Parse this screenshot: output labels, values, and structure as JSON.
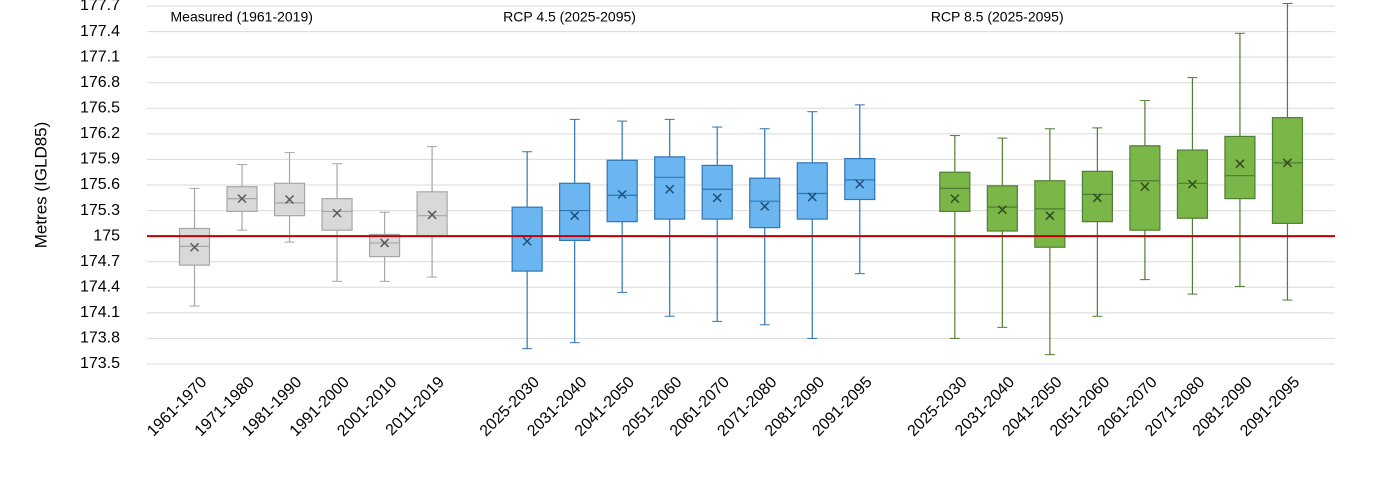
{
  "chart_data": {
    "type": "box",
    "y_label": "Metres (IGLD85)",
    "ylim": [
      173.5,
      177.7
    ],
    "yticks": [
      173.5,
      173.8,
      174.1,
      174.4,
      174.7,
      175,
      175.3,
      175.6,
      175.9,
      176.2,
      176.5,
      176.8,
      177.1,
      177.4,
      177.7
    ],
    "grid": true,
    "reference_line": {
      "value": 175,
      "color": "#c00000"
    },
    "categories": [
      "1961-1970",
      "1971-1980",
      "1981-1990",
      "1991-2000",
      "2001-2010",
      "2011-2019",
      null,
      "2025-2030",
      "2031-2040",
      "2041-2050",
      "2051-2060",
      "2061-2070",
      "2071-2080",
      "2081-2090",
      "2091-2095",
      null,
      "2025-2030",
      "2031-2040",
      "2041-2050",
      "2051-2060",
      "2061-2070",
      "2071-2080",
      "2081-2090",
      "2091-2095"
    ],
    "series": [
      {
        "name": "Measured (1961-2019)",
        "color": "#d9d9d9",
        "edge_color": "#a6a6a6",
        "mean_color": "#595959",
        "min": [
          174.18,
          175.07,
          174.93,
          174.47,
          174.47,
          174.52,
          null,
          null,
          null,
          null,
          null,
          null,
          null,
          null,
          null,
          null,
          null,
          null,
          null,
          null,
          null,
          null,
          null,
          null
        ],
        "q1": [
          174.66,
          175.29,
          175.24,
          175.07,
          174.76,
          175.0,
          null,
          null,
          null,
          null,
          null,
          null,
          null,
          null,
          null,
          null,
          null,
          null,
          null,
          null,
          null,
          null,
          null,
          null
        ],
        "median": [
          174.88,
          175.44,
          175.39,
          175.29,
          174.92,
          175.24,
          null,
          null,
          null,
          null,
          null,
          null,
          null,
          null,
          null,
          null,
          null,
          null,
          null,
          null,
          null,
          null,
          null,
          null
        ],
        "q3": [
          175.09,
          175.58,
          175.62,
          175.44,
          175.02,
          175.52,
          null,
          null,
          null,
          null,
          null,
          null,
          null,
          null,
          null,
          null,
          null,
          null,
          null,
          null,
          null,
          null,
          null,
          null
        ],
        "max": [
          175.56,
          175.84,
          175.98,
          175.85,
          175.28,
          176.05,
          null,
          null,
          null,
          null,
          null,
          null,
          null,
          null,
          null,
          null,
          null,
          null,
          null,
          null,
          null,
          null,
          null,
          null
        ],
        "mean": [
          174.87,
          175.44,
          175.43,
          175.27,
          174.92,
          175.25,
          null,
          null,
          null,
          null,
          null,
          null,
          null,
          null,
          null,
          null,
          null,
          null,
          null,
          null,
          null,
          null,
          null,
          null
        ]
      },
      {
        "name": "RCP 4.5 (2025-2095)",
        "color": "#6bb6f0",
        "edge_color": "#2e75b6",
        "mean_color": "#1f4e79",
        "min": [
          null,
          null,
          null,
          null,
          null,
          null,
          null,
          173.68,
          173.75,
          174.34,
          174.06,
          174.0,
          173.96,
          173.8,
          174.56,
          null,
          null,
          null,
          null,
          null,
          null,
          null,
          null,
          null
        ],
        "q1": [
          null,
          null,
          null,
          null,
          null,
          null,
          null,
          174.59,
          174.95,
          175.17,
          175.2,
          175.2,
          175.1,
          175.2,
          175.43,
          null,
          null,
          null,
          null,
          null,
          null,
          null,
          null,
          null
        ],
        "median": [
          null,
          null,
          null,
          null,
          null,
          null,
          null,
          175.0,
          175.3,
          175.48,
          175.69,
          175.55,
          175.41,
          175.5,
          175.66,
          null,
          null,
          null,
          null,
          null,
          null,
          null,
          null,
          null
        ],
        "q3": [
          null,
          null,
          null,
          null,
          null,
          null,
          null,
          175.34,
          175.62,
          175.89,
          175.93,
          175.83,
          175.68,
          175.86,
          175.91,
          null,
          null,
          null,
          null,
          null,
          null,
          null,
          null,
          null
        ],
        "max": [
          null,
          null,
          null,
          null,
          null,
          null,
          null,
          175.99,
          176.37,
          176.35,
          176.37,
          176.28,
          176.26,
          176.46,
          176.54,
          null,
          null,
          null,
          null,
          null,
          null,
          null,
          null,
          null
        ],
        "mean": [
          null,
          null,
          null,
          null,
          null,
          null,
          null,
          174.94,
          175.24,
          175.49,
          175.55,
          175.45,
          175.35,
          175.46,
          175.61,
          null,
          null,
          null,
          null,
          null,
          null,
          null,
          null,
          null
        ]
      },
      {
        "name": "RCP 8.5 (2025-2095)",
        "color": "#7ab648",
        "edge_color": "#507e32",
        "mean_color": "#2f4d1d",
        "min": [
          null,
          null,
          null,
          null,
          null,
          null,
          null,
          null,
          null,
          null,
          null,
          null,
          null,
          null,
          null,
          null,
          173.8,
          173.93,
          173.61,
          174.06,
          174.49,
          174.32,
          174.41,
          174.25
        ],
        "q1": [
          null,
          null,
          null,
          null,
          null,
          null,
          null,
          null,
          null,
          null,
          null,
          null,
          null,
          null,
          null,
          null,
          175.29,
          175.06,
          174.87,
          175.17,
          175.07,
          175.21,
          175.44,
          175.15
        ],
        "median": [
          null,
          null,
          null,
          null,
          null,
          null,
          null,
          null,
          null,
          null,
          null,
          null,
          null,
          null,
          null,
          null,
          175.56,
          175.34,
          175.32,
          175.49,
          175.65,
          175.62,
          175.71,
          175.86
        ],
        "q3": [
          null,
          null,
          null,
          null,
          null,
          null,
          null,
          null,
          null,
          null,
          null,
          null,
          null,
          null,
          null,
          null,
          175.75,
          175.59,
          175.65,
          175.76,
          176.06,
          176.01,
          176.17,
          176.39
        ],
        "max": [
          null,
          null,
          null,
          null,
          null,
          null,
          null,
          null,
          null,
          null,
          null,
          null,
          null,
          null,
          null,
          null,
          176.18,
          176.15,
          176.26,
          176.27,
          176.59,
          176.86,
          177.38,
          177.73
        ],
        "mean": [
          null,
          null,
          null,
          null,
          null,
          null,
          null,
          null,
          null,
          null,
          null,
          null,
          null,
          null,
          null,
          null,
          175.44,
          175.31,
          175.24,
          175.45,
          175.58,
          175.61,
          175.85,
          175.86
        ]
      }
    ]
  }
}
